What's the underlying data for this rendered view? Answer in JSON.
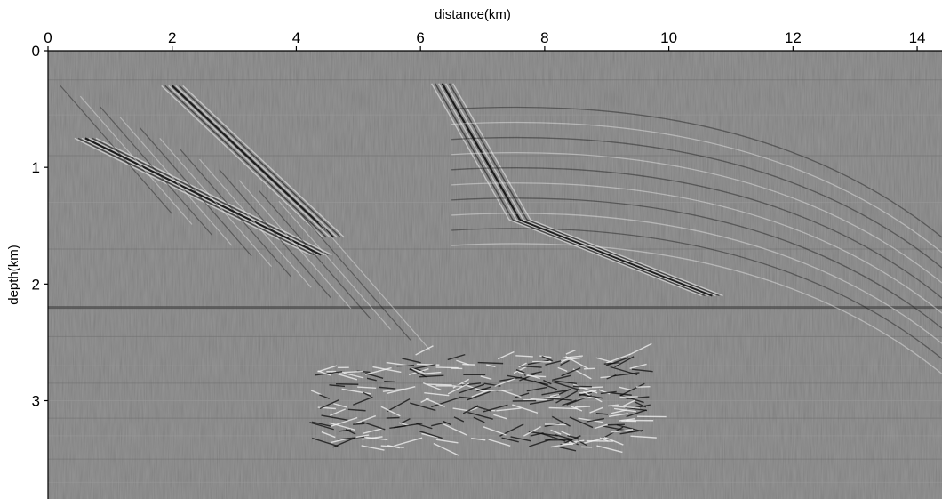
{
  "chart_data": {
    "type": "heatmap",
    "title": "",
    "xlabel": "distance(km)",
    "ylabel": "depth(km)",
    "x_axis_position": "top",
    "xlim": [
      0,
      14.4
    ],
    "ylim": [
      0,
      3.85
    ],
    "y_inverted": true,
    "xticks": [
      0,
      2,
      4,
      6,
      8,
      10,
      12,
      14
    ],
    "yticks": [
      0,
      1,
      2,
      3
    ],
    "colormap": "grayscale",
    "background_color": "#808080",
    "grid": false,
    "legend": "none",
    "features": [
      {
        "kind": "dipping reflector",
        "from": [
          0.6,
          0.75
        ],
        "to": [
          4.4,
          1.75
        ]
      },
      {
        "kind": "dipping reflector",
        "from": [
          2.0,
          0.3
        ],
        "to": [
          4.6,
          1.6
        ]
      },
      {
        "kind": "fault",
        "from": [
          6.35,
          0.28
        ],
        "to": [
          7.6,
          1.45
        ]
      },
      {
        "kind": "dipping reflector",
        "from": [
          7.6,
          1.45
        ],
        "to": [
          10.7,
          2.1
        ]
      },
      {
        "kind": "salt base boundary",
        "from": [
          0.0,
          2.2
        ],
        "to": [
          14.4,
          2.2
        ]
      },
      {
        "kind": "chaotic zone",
        "x_range": [
          4.2,
          9.5
        ],
        "depth_range": [
          2.6,
          3.4
        ]
      }
    ]
  }
}
